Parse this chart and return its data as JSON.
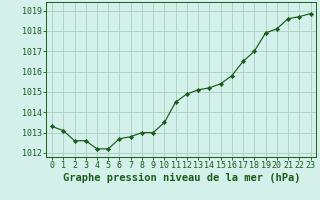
{
  "x": [
    0,
    1,
    2,
    3,
    4,
    5,
    6,
    7,
    8,
    9,
    10,
    11,
    12,
    13,
    14,
    15,
    16,
    17,
    18,
    19,
    20,
    21,
    22,
    23
  ],
  "y": [
    1013.3,
    1013.1,
    1012.6,
    1012.6,
    1012.2,
    1012.2,
    1012.7,
    1012.8,
    1013.0,
    1013.0,
    1013.5,
    1014.5,
    1014.9,
    1015.1,
    1015.2,
    1015.4,
    1015.8,
    1016.5,
    1017.0,
    1017.9,
    1018.1,
    1018.6,
    1018.7,
    1018.85
  ],
  "line_color": "#1a5c1a",
  "marker": "D",
  "marker_size": 2.2,
  "background_color": "#d4f0ea",
  "grid_color": "#aacfc4",
  "xlabel": "Graphe pression niveau de la mer (hPa)",
  "xlabel_fontsize": 7.5,
  "ylim": [
    1011.8,
    1019.4
  ],
  "xlim": [
    -0.5,
    23.5
  ],
  "xtick_labels": [
    "0",
    "1",
    "2",
    "3",
    "4",
    "5",
    "6",
    "7",
    "8",
    "9",
    "10",
    "11",
    "12",
    "13",
    "14",
    "15",
    "16",
    "17",
    "18",
    "19",
    "20",
    "21",
    "22",
    "23"
  ],
  "tick_fontsize": 6.0,
  "yticks": [
    1012,
    1013,
    1014,
    1015,
    1016,
    1017,
    1018,
    1019
  ]
}
